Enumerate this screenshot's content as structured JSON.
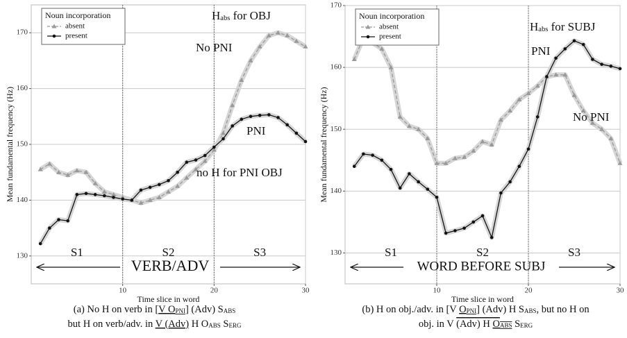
{
  "chart_data": [
    {
      "type": "line",
      "x": [
        1,
        2,
        3,
        4,
        5,
        6,
        7,
        8,
        9,
        10,
        11,
        12,
        13,
        14,
        15,
        16,
        17,
        18,
        19,
        20,
        21,
        22,
        23,
        24,
        25,
        26,
        27,
        28,
        29,
        30
      ],
      "series": [
        {
          "name": "absent",
          "color": "#999999",
          "marker": "triangle",
          "values": [
            145.5,
            146.5,
            145,
            144.5,
            145.3,
            145,
            143,
            141.5,
            141,
            140.5,
            140,
            139.5,
            140,
            140.5,
            141.5,
            142.5,
            144,
            145.5,
            147,
            149,
            152,
            157,
            161.5,
            165,
            167.5,
            169.5,
            170,
            169.5,
            168.5,
            167.5
          ]
        },
        {
          "name": "present",
          "color": "#111111",
          "marker": "circle",
          "values": [
            132.2,
            135,
            136.5,
            136.3,
            141,
            141.2,
            141,
            140.8,
            140.5,
            140.2,
            140,
            141.8,
            142.3,
            142.8,
            143.5,
            145,
            146.8,
            147.2,
            148,
            149.5,
            151,
            153.3,
            154.5,
            155,
            155.2,
            155.3,
            154.8,
            153.5,
            152,
            150.5
          ]
        }
      ],
      "legend_title": "Noun incorporation",
      "legend": "upper left",
      "xlabel": "Time slice in word",
      "ylabel": "Mean fundamental frequency (Hz)",
      "xlim": [
        0,
        30
      ],
      "xticks": [
        10,
        20,
        30
      ],
      "ylim": [
        125,
        175
      ],
      "yticks": [
        130,
        140,
        150,
        160,
        170
      ],
      "grid": true,
      "boundaries": [
        10,
        20
      ],
      "sections": [
        "S1",
        "S2",
        "S3"
      ],
      "arrow_label": "VERB/ADV",
      "annotations": [
        [
          {
            "text": "H"
          },
          {
            "text": "abs",
            "sub": true
          },
          {
            "text": " for OBJ"
          }
        ],
        "No PNI",
        "PNI",
        "no H for PNI OBJ"
      ],
      "caption": [
        [
          {
            "text": "(a) No H on verb in ["
          },
          {
            "text": "V O",
            "underline": true
          },
          {
            "text": "PNI",
            "sub": true,
            "underline": true
          },
          {
            "text": "] (Adv) S"
          },
          {
            "text": "ABS",
            "sub": true
          }
        ],
        [
          {
            "text": "but H on verb/adv. in "
          },
          {
            "text": "V (Adv)",
            "underline": true
          },
          {
            "text": " H O"
          },
          {
            "text": "ABS",
            "sub": true
          },
          {
            "text": " S"
          },
          {
            "text": "ERG",
            "sub": true
          }
        ]
      ]
    },
    {
      "type": "line",
      "x": [
        1,
        2,
        3,
        4,
        5,
        6,
        7,
        8,
        9,
        10,
        11,
        12,
        13,
        14,
        15,
        16,
        17,
        18,
        19,
        20,
        21,
        22,
        23,
        24,
        25,
        26,
        27,
        28,
        29,
        30
      ],
      "series": [
        {
          "name": "absent",
          "color": "#999999",
          "marker": "triangle",
          "values": [
            161.3,
            164.8,
            164,
            163,
            160,
            152,
            150.5,
            150,
            148.5,
            144.5,
            144.5,
            145.3,
            145.5,
            146.5,
            148,
            147.5,
            151.5,
            153,
            154.8,
            155.8,
            157,
            158.5,
            158.8,
            158.8,
            155.5,
            153,
            151,
            150,
            148.5,
            144.5
          ]
        },
        {
          "name": "present",
          "color": "#111111",
          "marker": "circle",
          "values": [
            144,
            146,
            145.8,
            145,
            143.5,
            140.5,
            142.8,
            141.5,
            140.3,
            139,
            133.2,
            133.6,
            134,
            135,
            136,
            132.5,
            139.7,
            141.5,
            144,
            146.8,
            152,
            158.5,
            161.5,
            163,
            164.3,
            163.7,
            161.3,
            160.5,
            160.2,
            159.8
          ]
        }
      ],
      "legend_title": "Noun incorporation",
      "legend": "upper left",
      "xlabel": "Time slice in word",
      "ylabel": "Mean fundamental frequency (Hz)",
      "xlim": [
        0,
        30
      ],
      "xticks": [
        10,
        20,
        30
      ],
      "ylim": [
        125,
        170
      ],
      "yticks": [
        130,
        140,
        150,
        160,
        170
      ],
      "grid": true,
      "boundaries": [
        10,
        20
      ],
      "sections": [
        "S1",
        "S2",
        "S3"
      ],
      "arrow_label": "WORD BEFORE SUBJ",
      "annotations": [
        [
          {
            "text": "H"
          },
          {
            "text": "abs",
            "sub": true
          },
          {
            "text": " for SUBJ"
          }
        ],
        "PNI",
        "No PNI"
      ],
      "caption": [
        [
          {
            "text": "(b) H on obj./adv. in [V "
          },
          {
            "text": "O",
            "underline": true
          },
          {
            "text": "PNI",
            "sub": true,
            "underline": true
          },
          {
            "text": "] (Adv) H S"
          },
          {
            "text": "ABS",
            "sub": true
          },
          {
            "text": ", but no H on"
          }
        ],
        [
          {
            "text": "obj. in V "
          },
          {
            "text": "(Adv) H ",
            "overline": true
          },
          {
            "text": "O",
            "overline": true,
            "underline": true
          },
          {
            "text": "ABS",
            "sub": true,
            "overline": true,
            "underline": true
          },
          {
            "text": " S"
          },
          {
            "text": "ERG",
            "sub": true
          }
        ]
      ]
    }
  ]
}
